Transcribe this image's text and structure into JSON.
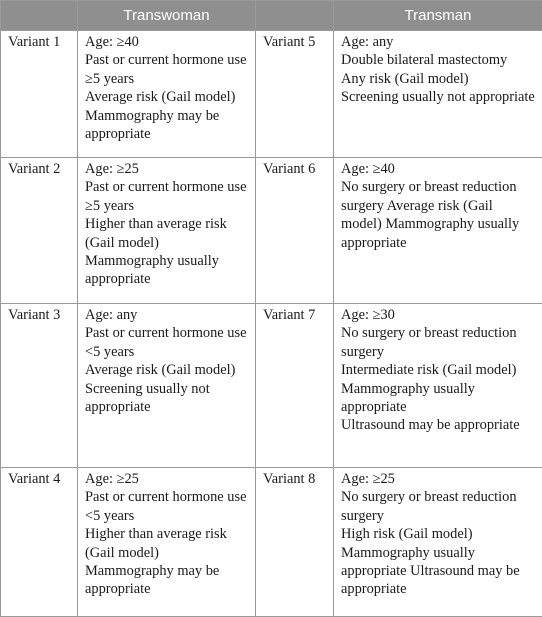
{
  "headers": [
    "",
    "Transwoman",
    "",
    "Transman"
  ],
  "rows": [
    {
      "left_label": "Variant 1",
      "left_lines": [
        "Age: ≥40",
        "Past or current hormone use ≥5 years",
        "Average risk (Gail model)",
        "Mammography may be appropriate"
      ],
      "right_label": "Variant 5",
      "right_lines": [
        "Age: any",
        "Double bilateral mastectomy",
        "Any risk (Gail model)",
        "Screening usually not appropriate"
      ]
    },
    {
      "left_label": "Variant 2",
      "left_lines": [
        "Age: ≥25",
        "Past or current hormone use ≥5 years",
        "Higher than average risk (Gail model)",
        "Mammography usually appropriate"
      ],
      "right_label": "Variant 6",
      "right_lines": [
        "Age: ≥40",
        "No surgery or breast reduction surgery Average risk (Gail model) Mammography usually appropriate"
      ]
    },
    {
      "left_label": "Variant 3",
      "left_lines": [
        "Age: any",
        "Past or current hormone use <5 years",
        "Average risk (Gail model)",
        "Screening usually not appropriate"
      ],
      "right_label": "Variant 7",
      "right_lines": [
        "Age: ≥30",
        "No surgery or breast reduction surgery",
        "Intermediate risk (Gail model)",
        "Mammography usually appropriate",
        "Ultrasound may be appropriate"
      ]
    },
    {
      "left_label": "Variant 4",
      "left_lines": [
        "Age: ≥25",
        "Past or current hormone use <5 years",
        "Higher than average risk (Gail model)",
        "Mammography may be appropriate"
      ],
      "right_label": "Variant 8",
      "right_lines": [
        "Age: ≥25",
        "No surgery or breast reduction surgery",
        "High risk (Gail model)",
        "Mammography usually appropriate Ultrasound may be appropriate"
      ]
    }
  ]
}
